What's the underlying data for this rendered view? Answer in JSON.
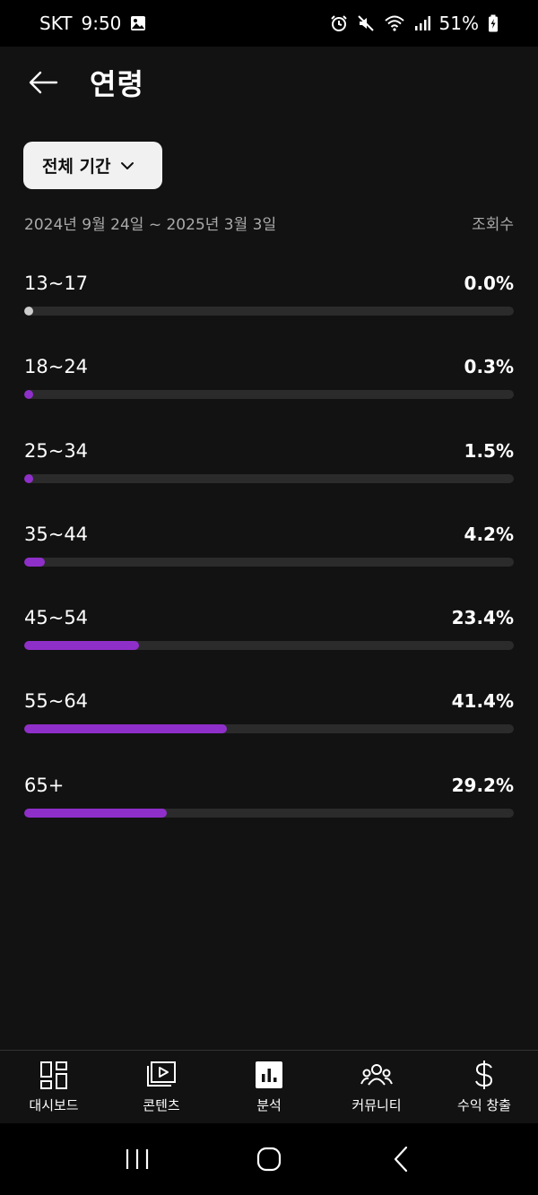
{
  "status_bar": {
    "carrier": "SKT",
    "time": "9:50",
    "battery": "51%"
  },
  "header": {
    "title": "연령"
  },
  "filter": {
    "period_label": "전체 기간"
  },
  "date_range": {
    "range": "2024년 9월 24일 ~ 2025년 3월 3일",
    "metric": "조회수"
  },
  "age_groups": [
    {
      "label": "13~17",
      "value": "0.0%",
      "percent": 0.0
    },
    {
      "label": "18~24",
      "value": "0.3%",
      "percent": 0.3
    },
    {
      "label": "25~34",
      "value": "1.5%",
      "percent": 1.5
    },
    {
      "label": "35~44",
      "value": "4.2%",
      "percent": 4.2
    },
    {
      "label": "45~54",
      "value": "23.4%",
      "percent": 23.4
    },
    {
      "label": "55~64",
      "value": "41.4%",
      "percent": 41.4
    },
    {
      "label": "65+",
      "value": "29.2%",
      "percent": 29.2
    }
  ],
  "bottom_nav": [
    {
      "label": "대시보드",
      "icon": "dashboard-icon"
    },
    {
      "label": "콘텐츠",
      "icon": "content-icon"
    },
    {
      "label": "분석",
      "icon": "analytics-icon"
    },
    {
      "label": "커뮤니티",
      "icon": "community-icon"
    },
    {
      "label": "수익 창출",
      "icon": "dollar-icon"
    }
  ],
  "colors": {
    "accent": "#8f2fc9",
    "track": "#2b2b2b",
    "background": "#121212"
  }
}
